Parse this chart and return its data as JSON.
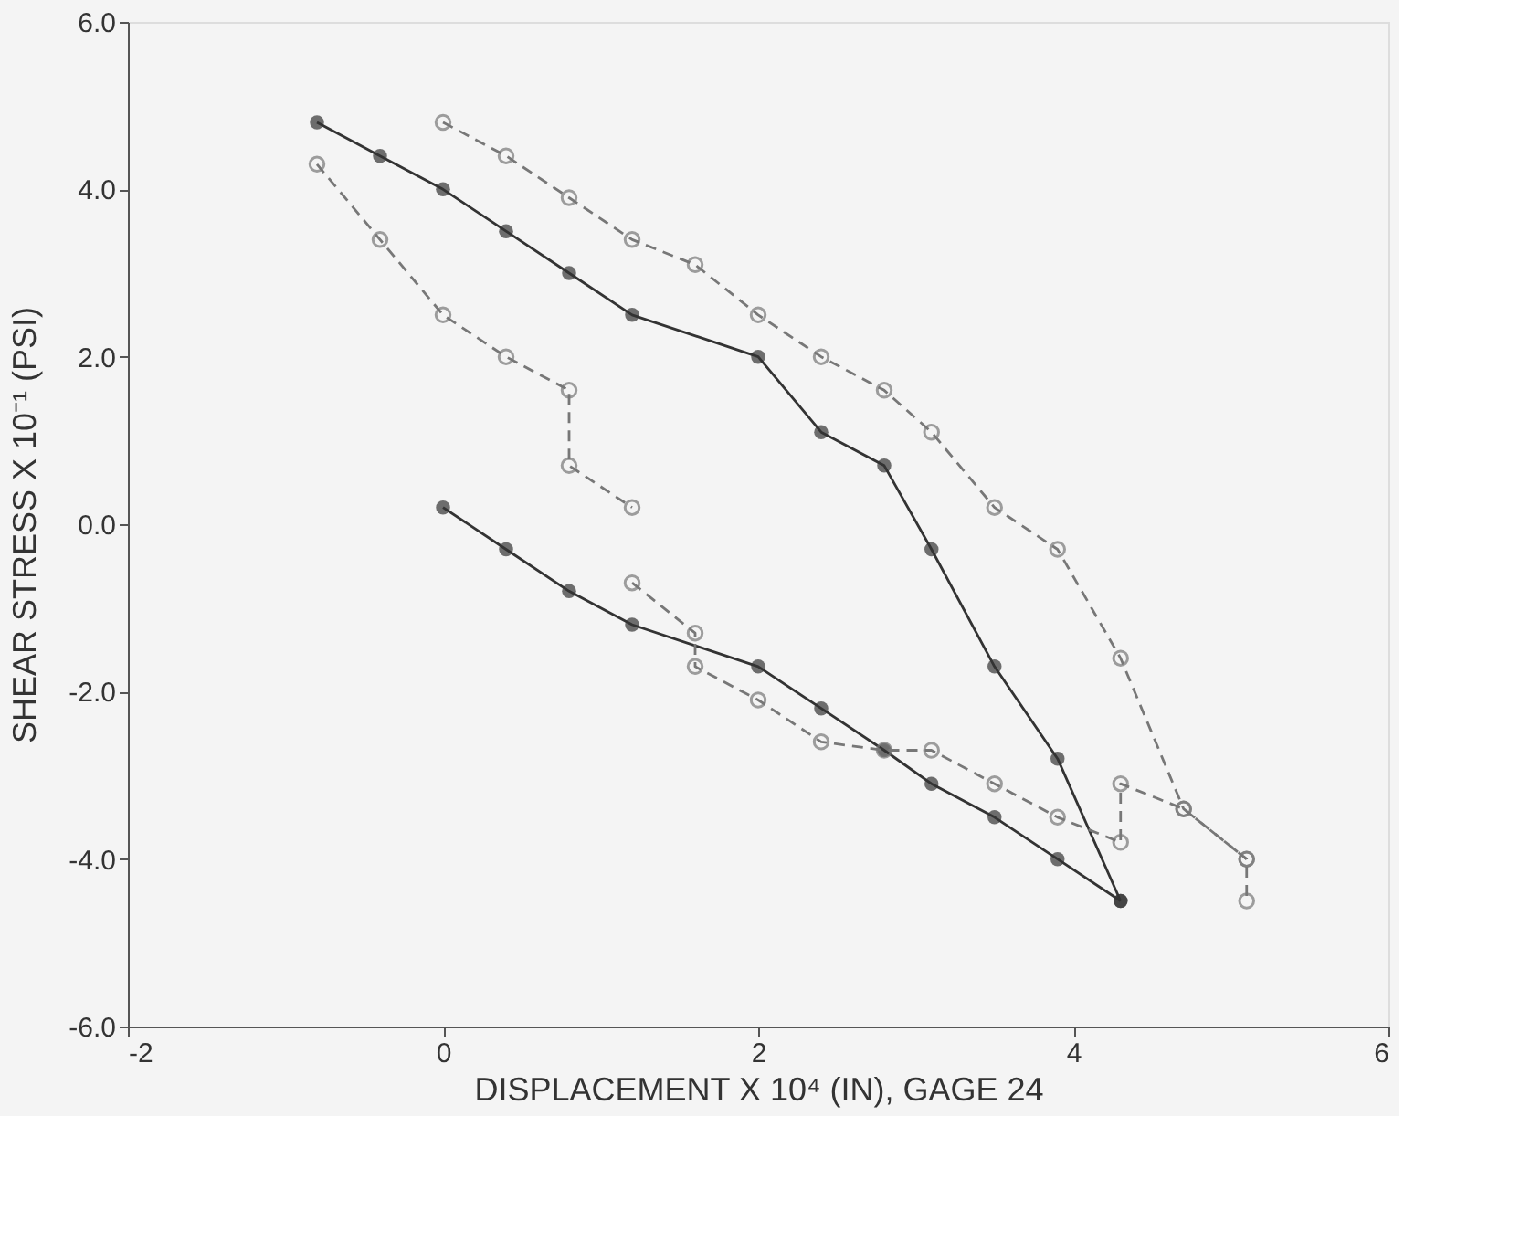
{
  "chart_data": {
    "type": "line",
    "xlabel": "DISPLACEMENT X 10⁴ (IN), GAGE 24",
    "ylabel": "SHEAR STRESS X 10⁻¹ (PSI)",
    "xlim": [
      -2,
      6
    ],
    "xticks": [
      -2,
      0,
      2,
      4,
      6
    ],
    "ylim": [
      -6,
      6
    ],
    "yticks": [
      {
        "value": -6,
        "label": "-6.0"
      },
      {
        "value": -4,
        "label": "-4.0"
      },
      {
        "value": -2,
        "label": "-2.0"
      },
      {
        "value": 0,
        "label": "0.0"
      },
      {
        "value": 2,
        "label": "2.0"
      },
      {
        "value": 4,
        "label": "4.0"
      },
      {
        "value": 6,
        "label": "6.0"
      }
    ],
    "grid": false,
    "marker": "circle",
    "series": [
      {
        "color": "#777777",
        "line_style": "dashed",
        "x": [
          0,
          0.4,
          0.8,
          1.2,
          1.6,
          2.0,
          2.4,
          2.8,
          3.1,
          3.5,
          3.9,
          4.3,
          4.7,
          5.1,
          5.1
        ],
        "values": [
          4.8,
          4.4,
          3.9,
          3.4,
          3.1,
          2.5,
          2.0,
          1.6,
          1.1,
          0.2,
          -0.3,
          -1.6,
          -3.4,
          -4.0,
          -4.5
        ]
      },
      {
        "color": "#333333",
        "line_style": "solid",
        "x": [
          -0.8,
          -0.4,
          0,
          0.4,
          0.8,
          1.2,
          2.0,
          2.4,
          2.8,
          3.1,
          3.5,
          3.9,
          4.3
        ],
        "values": [
          4.8,
          4.4,
          4.0,
          3.5,
          3.0,
          2.5,
          2.0,
          1.1,
          0.7,
          -0.3,
          -1.7,
          -2.8,
          -4.5
        ]
      },
      {
        "color": "#777777",
        "line_style": "dashed",
        "x": [
          -0.8,
          -0.4,
          0,
          0.4,
          0.8,
          0.8,
          1.2
        ],
        "values": [
          4.3,
          3.4,
          2.5,
          2.0,
          1.6,
          0.7,
          0.2
        ]
      },
      {
        "color": "#333333",
        "line_style": "solid",
        "x": [
          0,
          0.4,
          0.8,
          1.2,
          2.0,
          2.4,
          2.8,
          3.1,
          3.5,
          3.9,
          4.3
        ],
        "values": [
          0.2,
          -0.3,
          -0.8,
          -1.2,
          -1.7,
          -2.2,
          -2.7,
          -3.1,
          -3.5,
          -4.0,
          -4.5
        ]
      },
      {
        "color": "#777777",
        "line_style": "dashed",
        "x": [
          1.2,
          1.6,
          1.6,
          2.0,
          2.4,
          2.8,
          3.1,
          3.5,
          3.9,
          4.3,
          4.3,
          4.7,
          5.1
        ],
        "values": [
          -0.7,
          -1.3,
          -1.7,
          -2.1,
          -2.6,
          -2.7,
          -2.7,
          -3.1,
          -3.5,
          -3.8,
          -3.1,
          -3.4,
          -4.0
        ]
      }
    ]
  }
}
